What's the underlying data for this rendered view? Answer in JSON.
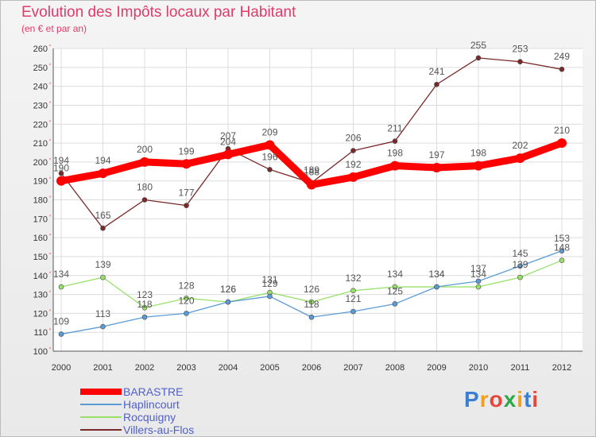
{
  "header": {
    "title": "Evolution des Impôts locaux par Habitant",
    "subtitle": "(en € et par an)"
  },
  "brand": {
    "text": "Proxiti",
    "letter_colors": [
      "#3b7fd4",
      "#f0a020",
      "#e8463c",
      "#2ea84a",
      "#f0a020",
      "#3b7fd4",
      "#e8463c"
    ]
  },
  "chart_data": {
    "type": "line",
    "title": "Evolution des Impôts locaux par Habitant",
    "subtitle": "(en € et par an)",
    "xlabel": "",
    "ylabel": "",
    "x": [
      "2000",
      "2001",
      "2002",
      "2003",
      "2004",
      "2005",
      "2006",
      "2007",
      "2008",
      "2009",
      "2010",
      "2011",
      "2012"
    ],
    "ylim": [
      100,
      260
    ],
    "yticks": [
      100,
      110,
      120,
      130,
      140,
      150,
      160,
      170,
      180,
      190,
      200,
      210,
      220,
      230,
      240,
      250,
      260
    ],
    "grid": true,
    "legend_position": "bottom-left",
    "series": [
      {
        "name": "BARASTRE",
        "color": "#ff0000",
        "values": [
          190,
          194,
          200,
          199,
          204,
          209,
          188,
          192,
          198,
          197,
          198,
          202,
          210
        ]
      },
      {
        "name": "Haplincourt",
        "color": "#5b9bd5",
        "values": [
          109,
          113,
          118,
          120,
          126,
          129,
          118,
          121,
          125,
          134,
          137,
          145,
          153
        ]
      },
      {
        "name": "Rocquigny",
        "color": "#99e06b",
        "values": [
          134,
          139,
          123,
          128,
          126,
          131,
          126,
          132,
          134,
          134,
          134,
          139,
          148
        ]
      },
      {
        "name": "Villers-au-Flos",
        "color": "#7a2a2a",
        "values": [
          194,
          165,
          180,
          177,
          207,
          196,
          189,
          206,
          211,
          241,
          255,
          253,
          249
        ]
      }
    ]
  }
}
